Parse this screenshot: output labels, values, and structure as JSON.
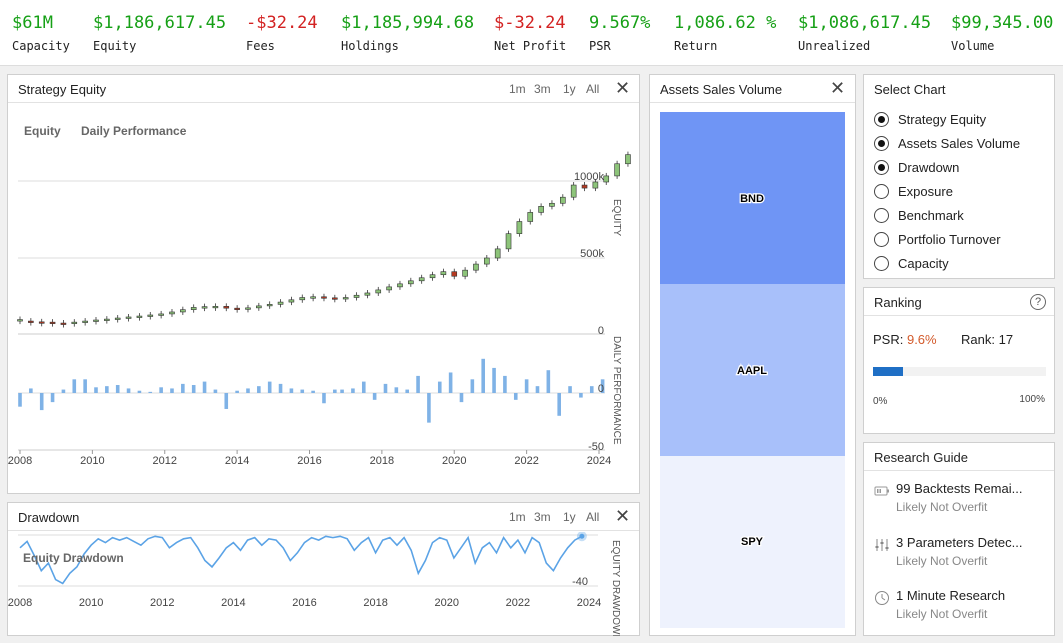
{
  "stats": [
    {
      "value": "$61M",
      "label": "Capacity",
      "tone": "pos"
    },
    {
      "value": "$1,186,617.45",
      "label": "Equity",
      "tone": "pos"
    },
    {
      "value": "-$32.24",
      "label": "Fees",
      "tone": "neg"
    },
    {
      "value": "$1,185,994.68",
      "label": "Holdings",
      "tone": "pos"
    },
    {
      "value": "$-32.24",
      "label": "Net Profit",
      "tone": "neg"
    },
    {
      "value": "9.567%",
      "label": "PSR",
      "tone": "pos"
    },
    {
      "value": "1,086.62 %",
      "label": "Return",
      "tone": "pos"
    },
    {
      "value": "$1,086,617.45",
      "label": "Unrealized",
      "tone": "pos"
    },
    {
      "value": "$99,345.00",
      "label": "Volume",
      "tone": "pos"
    }
  ],
  "strategy_equity": {
    "title": "Strategy Equity",
    "ranges": [
      "1m",
      "3m",
      "1y",
      "All"
    ],
    "close": "✕",
    "legend": [
      "Equity",
      "Daily Performance"
    ],
    "y_axis_label": "EQUITY",
    "y2_axis_label": "DAILY PERFORMANCE"
  },
  "drawdown": {
    "title": "Drawdown",
    "ranges": [
      "1m",
      "3m",
      "1y",
      "All"
    ],
    "close": "✕",
    "legend": "Equity Drawdown",
    "y_axis_label": "EQUITY DRAWDOWN"
  },
  "assets_sales_volume": {
    "title": "Assets Sales Volume",
    "close": "✕"
  },
  "select_chart": {
    "title": "Select Chart",
    "options": [
      {
        "label": "Strategy Equity",
        "checked": true
      },
      {
        "label": "Assets Sales Volume",
        "checked": true
      },
      {
        "label": "Drawdown",
        "checked": true
      },
      {
        "label": "Exposure",
        "checked": false
      },
      {
        "label": "Benchmark",
        "checked": false
      },
      {
        "label": "Portfolio Turnover",
        "checked": false
      },
      {
        "label": "Capacity",
        "checked": false
      }
    ]
  },
  "ranking": {
    "title": "Ranking",
    "help_icon": "?",
    "psr_label": "PSR:",
    "psr_value": "9.6%",
    "rank_label": "Rank:",
    "rank_value": "17",
    "progress": 0.096,
    "min_label": "0%",
    "max_label": "100%"
  },
  "research_guide": {
    "title": "Research Guide",
    "items": [
      {
        "icon": "battery-icon",
        "title": "99 Backtests Remai...",
        "subtitle": "Likely Not Overfit"
      },
      {
        "icon": "sliders-icon",
        "title": "3 Parameters Detec...",
        "subtitle": "Likely Not Overfit"
      },
      {
        "icon": "clock-icon",
        "title": "1 Minute Research",
        "subtitle": "Likely Not Overfit"
      }
    ]
  },
  "colors": {
    "positive": "#16a016",
    "negative": "#d32222",
    "candle_up": "#8dc47a",
    "candle_down": "#b53a22",
    "bar_blue": "#7fb2e6",
    "drawdown_line": "#5ba3e6",
    "asset_bnd": "#6f95f5",
    "asset_aapl": "#a8c0fa",
    "asset_spy": "#eef2fd",
    "progress": "#1f6fc5"
  },
  "chart_data": [
    {
      "type": "line",
      "name": "Strategy Equity",
      "x_ticks": [
        "2008",
        "2010",
        "2012",
        "2014",
        "2016",
        "2018",
        "2020",
        "2022",
        "2024"
      ],
      "y_ticks": [
        "0",
        "500k",
        "1000k"
      ],
      "ylim": [
        0,
        1300000
      ],
      "candles": [
        [
          2008.0,
          85000,
          95000
        ],
        [
          2008.3,
          85000,
          80000
        ],
        [
          2008.6,
          80000,
          78000
        ],
        [
          2008.9,
          78000,
          72000
        ],
        [
          2009.2,
          72000,
          70000
        ],
        [
          2009.5,
          70000,
          78000
        ],
        [
          2009.8,
          78000,
          85000
        ],
        [
          2010.1,
          85000,
          92000
        ],
        [
          2010.4,
          92000,
          98000
        ],
        [
          2010.7,
          98000,
          105000
        ],
        [
          2011.0,
          105000,
          112000
        ],
        [
          2011.3,
          112000,
          118000
        ],
        [
          2011.6,
          118000,
          125000
        ],
        [
          2011.9,
          125000,
          132000
        ],
        [
          2012.2,
          132000,
          145000
        ],
        [
          2012.5,
          145000,
          160000
        ],
        [
          2012.8,
          160000,
          175000
        ],
        [
          2013.1,
          175000,
          180000
        ],
        [
          2013.4,
          180000,
          182000
        ],
        [
          2013.7,
          182000,
          170000
        ],
        [
          2014.0,
          170000,
          165000
        ],
        [
          2014.3,
          165000,
          172000
        ],
        [
          2014.6,
          172000,
          185000
        ],
        [
          2014.9,
          185000,
          195000
        ],
        [
          2015.2,
          195000,
          210000
        ],
        [
          2015.5,
          210000,
          225000
        ],
        [
          2015.8,
          225000,
          240000
        ],
        [
          2016.1,
          240000,
          245000
        ],
        [
          2016.4,
          245000,
          238000
        ],
        [
          2016.7,
          238000,
          232000
        ],
        [
          2017.0,
          232000,
          240000
        ],
        [
          2017.3,
          240000,
          255000
        ],
        [
          2017.6,
          255000,
          270000
        ],
        [
          2017.9,
          270000,
          290000
        ],
        [
          2018.2,
          290000,
          310000
        ],
        [
          2018.5,
          310000,
          330000
        ],
        [
          2018.8,
          330000,
          350000
        ],
        [
          2019.1,
          350000,
          370000
        ],
        [
          2019.4,
          370000,
          390000
        ],
        [
          2019.7,
          390000,
          410000
        ],
        [
          2020.0,
          410000,
          380000
        ],
        [
          2020.3,
          380000,
          420000
        ],
        [
          2020.6,
          420000,
          460000
        ],
        [
          2020.9,
          460000,
          500000
        ],
        [
          2021.2,
          500000,
          560000
        ],
        [
          2021.5,
          560000,
          660000
        ],
        [
          2021.8,
          660000,
          740000
        ],
        [
          2022.1,
          740000,
          800000
        ],
        [
          2022.4,
          800000,
          840000
        ],
        [
          2022.7,
          840000,
          860000
        ],
        [
          2023.0,
          860000,
          900000
        ],
        [
          2023.3,
          900000,
          980000
        ],
        [
          2023.6,
          980000,
          960000
        ],
        [
          2023.9,
          960000,
          1000000
        ],
        [
          2024.2,
          1000000,
          1040000
        ],
        [
          2024.5,
          1040000,
          1120000
        ],
        [
          2024.8,
          1120000,
          1180000
        ]
      ]
    },
    {
      "type": "bar",
      "name": "Daily Performance",
      "x_ticks": [
        "2008",
        "2010",
        "2012",
        "2014",
        "2016",
        "2018",
        "2020",
        "2022",
        "2024"
      ],
      "y_ticks": [
        "0",
        "-50"
      ],
      "ylim": [
        -50,
        30
      ],
      "bars": [
        [
          2008.0,
          -12
        ],
        [
          2008.3,
          4
        ],
        [
          2008.6,
          -15
        ],
        [
          2008.9,
          -8
        ],
        [
          2009.2,
          3
        ],
        [
          2009.5,
          12
        ],
        [
          2009.8,
          12
        ],
        [
          2010.1,
          5
        ],
        [
          2010.4,
          6
        ],
        [
          2010.7,
          7
        ],
        [
          2011.0,
          4
        ],
        [
          2011.3,
          2
        ],
        [
          2011.6,
          1
        ],
        [
          2011.9,
          5
        ],
        [
          2012.2,
          4
        ],
        [
          2012.5,
          8
        ],
        [
          2012.8,
          7
        ],
        [
          2013.1,
          10
        ],
        [
          2013.4,
          3
        ],
        [
          2013.7,
          -14
        ],
        [
          2014.0,
          2
        ],
        [
          2014.3,
          4
        ],
        [
          2014.6,
          6
        ],
        [
          2014.9,
          10
        ],
        [
          2015.2,
          8
        ],
        [
          2015.5,
          4
        ],
        [
          2015.8,
          3
        ],
        [
          2016.1,
          2
        ],
        [
          2016.4,
          -9
        ],
        [
          2016.7,
          3
        ],
        [
          2016.9,
          3
        ],
        [
          2017.2,
          4
        ],
        [
          2017.5,
          10
        ],
        [
          2017.8,
          -6
        ],
        [
          2018.1,
          8
        ],
        [
          2018.4,
          5
        ],
        [
          2018.7,
          3
        ],
        [
          2019.0,
          15
        ],
        [
          2019.3,
          -26
        ],
        [
          2019.6,
          10
        ],
        [
          2019.9,
          18
        ],
        [
          2020.2,
          -8
        ],
        [
          2020.5,
          12
        ],
        [
          2020.8,
          30
        ],
        [
          2021.1,
          22
        ],
        [
          2021.4,
          15
        ],
        [
          2021.7,
          -6
        ],
        [
          2022.0,
          12
        ],
        [
          2022.3,
          6
        ],
        [
          2022.6,
          20
        ],
        [
          2022.9,
          -20
        ],
        [
          2023.2,
          6
        ],
        [
          2023.5,
          -4
        ],
        [
          2023.8,
          6
        ],
        [
          2024.1,
          12
        ]
      ]
    },
    {
      "type": "area",
      "name": "Equity Drawdown",
      "x_ticks": [
        "2008",
        "2010",
        "2012",
        "2014",
        "2016",
        "2018",
        "2020",
        "2022",
        "2024"
      ],
      "y_ticks": [
        "-40"
      ],
      "ylim": [
        -50,
        0
      ],
      "points": [
        [
          2008.0,
          -10
        ],
        [
          2008.2,
          -5
        ],
        [
          2008.4,
          -16
        ],
        [
          2008.6,
          -28
        ],
        [
          2008.8,
          -22
        ],
        [
          2009.0,
          -35
        ],
        [
          2009.2,
          -38
        ],
        [
          2009.4,
          -30
        ],
        [
          2009.6,
          -25
        ],
        [
          2009.8,
          -15
        ],
        [
          2010.0,
          -8
        ],
        [
          2010.2,
          -3
        ],
        [
          2010.4,
          -6
        ],
        [
          2010.6,
          -2
        ],
        [
          2010.8,
          -4
        ],
        [
          2011.0,
          -2
        ],
        [
          2011.2,
          -5
        ],
        [
          2011.4,
          -8
        ],
        [
          2011.6,
          -3
        ],
        [
          2011.8,
          -1
        ],
        [
          2012.0,
          -2
        ],
        [
          2012.2,
          -10
        ],
        [
          2012.4,
          -6
        ],
        [
          2012.6,
          -3
        ],
        [
          2012.8,
          -2
        ],
        [
          2013.0,
          -10
        ],
        [
          2013.2,
          -20
        ],
        [
          2013.4,
          -25
        ],
        [
          2013.6,
          -18
        ],
        [
          2013.8,
          -10
        ],
        [
          2014.0,
          -6
        ],
        [
          2014.2,
          -12
        ],
        [
          2014.4,
          -4
        ],
        [
          2014.6,
          -2
        ],
        [
          2014.8,
          -8
        ],
        [
          2015.0,
          -3
        ],
        [
          2015.2,
          -4
        ],
        [
          2015.4,
          -10
        ],
        [
          2015.6,
          -20
        ],
        [
          2015.8,
          -14
        ],
        [
          2016.0,
          -6
        ],
        [
          2016.2,
          -2
        ],
        [
          2016.4,
          -4
        ],
        [
          2016.6,
          -1
        ],
        [
          2016.8,
          -2
        ],
        [
          2017.0,
          -1
        ],
        [
          2017.2,
          -3
        ],
        [
          2017.4,
          -12
        ],
        [
          2017.6,
          -6
        ],
        [
          2017.8,
          -2
        ],
        [
          2018.0,
          -14
        ],
        [
          2018.2,
          -4
        ],
        [
          2018.4,
          -2
        ],
        [
          2018.6,
          -8
        ],
        [
          2018.8,
          -2
        ],
        [
          2019.0,
          -12
        ],
        [
          2019.2,
          -30
        ],
        [
          2019.4,
          -20
        ],
        [
          2019.6,
          -6
        ],
        [
          2019.8,
          -2
        ],
        [
          2020.0,
          -4
        ],
        [
          2020.2,
          -18
        ],
        [
          2020.4,
          -10
        ],
        [
          2020.6,
          -2
        ],
        [
          2020.8,
          -22
        ],
        [
          2021.0,
          -10
        ],
        [
          2021.2,
          -6
        ],
        [
          2021.4,
          -14
        ],
        [
          2021.6,
          -2
        ],
        [
          2021.8,
          -10
        ],
        [
          2022.0,
          -4
        ],
        [
          2022.2,
          -14
        ],
        [
          2022.4,
          -2
        ],
        [
          2022.6,
          -6
        ],
        [
          2022.8,
          -22
        ],
        [
          2023.0,
          -28
        ],
        [
          2023.2,
          -18
        ],
        [
          2023.4,
          -10
        ],
        [
          2023.6,
          -4
        ],
        [
          2023.8,
          -1
        ]
      ]
    },
    {
      "type": "bar",
      "name": "Assets Sales Volume",
      "categories": [
        "BND",
        "AAPL",
        "SPY"
      ]
    }
  ]
}
